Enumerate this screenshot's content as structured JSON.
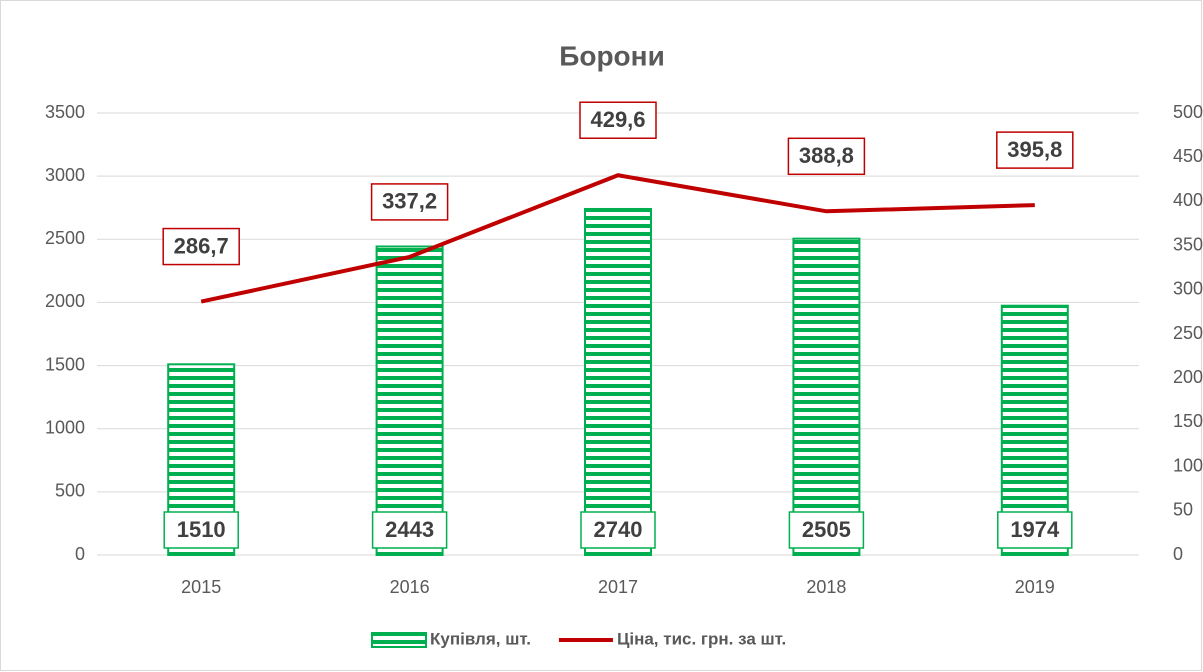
{
  "chart_data": {
    "type": "combo",
    "title": "Борони",
    "categories": [
      "2015",
      "2016",
      "2017",
      "2018",
      "2019"
    ],
    "series": [
      {
        "name": "Купівля, шт.",
        "type": "bar",
        "color": "#00b050",
        "values": [
          1510,
          2443,
          2740,
          2505,
          1974
        ]
      },
      {
        "name": "Ціна, тис. грн. за шт.",
        "type": "line",
        "axis": "y2",
        "color": "#c00000",
        "values": [
          286.7,
          337.2,
          429.6,
          388.8,
          395.8
        ],
        "value_labels": [
          "286,7",
          "337,2",
          "429,6",
          "388,8",
          "395,8"
        ]
      }
    ],
    "ylim": [
      0,
      3500
    ],
    "yticks": [
      0,
      500,
      1000,
      1500,
      2000,
      2500,
      3000,
      3500
    ],
    "y2lim": [
      0,
      500
    ],
    "y2ticks": [
      0,
      50,
      100,
      150,
      200,
      250,
      300,
      350,
      400,
      450,
      500
    ],
    "grid": true,
    "legend": "bottom"
  }
}
